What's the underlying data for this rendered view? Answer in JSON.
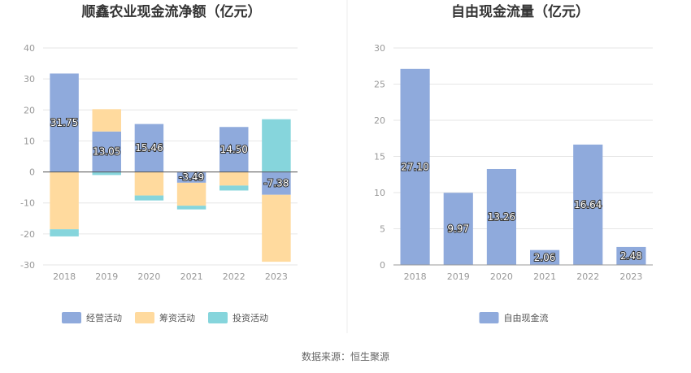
{
  "chart_data": [
    {
      "type": "bar",
      "stacked": true,
      "title": "顺鑫农业现金流净额（亿元）",
      "categories": [
        "2018",
        "2019",
        "2020",
        "2021",
        "2022",
        "2023"
      ],
      "ylim": [
        -30,
        40
      ],
      "yticks": [
        "40",
        "30",
        "20",
        "10",
        "0",
        "-10",
        "-20",
        "-30"
      ],
      "grid": true,
      "legend_position": "bottom",
      "series": [
        {
          "name": "经营活动",
          "color": "#8FAADC",
          "values": [
            31.75,
            13.05,
            15.46,
            -3.49,
            14.5,
            -7.38
          ]
        },
        {
          "name": "筹资活动",
          "color": "#FFDA9E",
          "values": [
            -18.5,
            7.2,
            -7.6,
            -7.4,
            -4.4,
            -21.6
          ]
        },
        {
          "name": "投资活动",
          "color": "#86D5DC",
          "values": [
            -2.3,
            -1.0,
            -1.6,
            -1.2,
            -1.6,
            17.0
          ]
        }
      ],
      "data_labels": [
        "31.75",
        "13.05",
        "15.46",
        "-3.49",
        "14.50",
        "-7.38"
      ]
    },
    {
      "type": "bar",
      "title": "自由现金流量（亿元）",
      "categories": [
        "2018",
        "2019",
        "2020",
        "2021",
        "2022",
        "2023"
      ],
      "ylim": [
        0,
        30
      ],
      "yticks": [
        "30",
        "25",
        "20",
        "15",
        "10",
        "5",
        "0"
      ],
      "grid": true,
      "legend_position": "bottom",
      "series": [
        {
          "name": "自由现金流",
          "color": "#8FAADC",
          "values": [
            27.1,
            9.97,
            13.26,
            2.06,
            16.64,
            2.48
          ]
        }
      ],
      "data_labels": [
        "27.10",
        "9.97",
        "13.26",
        "2.06",
        "16.64",
        "2.48"
      ]
    }
  ],
  "footer": {
    "source_text": "数据来源：恒生聚源"
  }
}
